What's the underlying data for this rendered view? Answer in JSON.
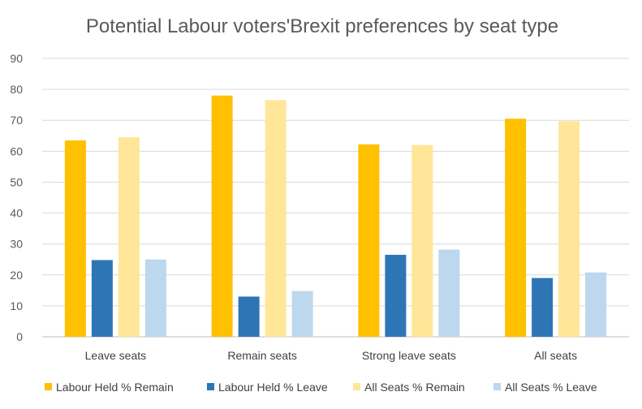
{
  "chart_data": {
    "type": "bar",
    "title": "Potential Labour voters'Brexit preferences by seat type",
    "xlabel": "",
    "ylabel": "",
    "ylim": [
      0,
      90
    ],
    "yticks": [
      0,
      10,
      20,
      30,
      40,
      50,
      60,
      70,
      80,
      90
    ],
    "grid": true,
    "legend_position": "bottom",
    "categories": [
      "Leave seats",
      "Remain seats",
      "Strong leave seats",
      "All seats"
    ],
    "series": [
      {
        "name": "Labour Held % Remain",
        "color": "#FFC000",
        "values": [
          63.5,
          78,
          62.2,
          70.5
        ]
      },
      {
        "name": "Labour Held % Leave",
        "color": "#2E75B6",
        "values": [
          24.8,
          13,
          26.5,
          19
        ]
      },
      {
        "name": "All Seats % Remain",
        "color": "#FFE699",
        "values": [
          64.5,
          76.5,
          62,
          69.7
        ]
      },
      {
        "name": "All Seats % Leave",
        "color": "#BDD7EE",
        "values": [
          25,
          14.8,
          28.2,
          20.8
        ]
      }
    ]
  }
}
